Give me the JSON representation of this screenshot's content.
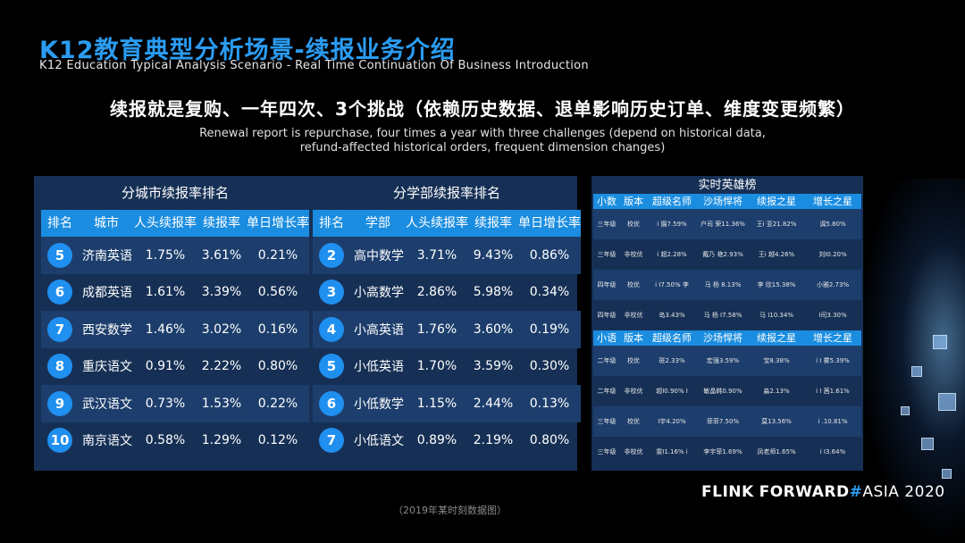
{
  "header": {
    "title": "K12教育典型分析场景-续报业务介绍",
    "subtitle": "K12 Education Typical Analysis Scenario - Real Time Continuation Of Business Introduction"
  },
  "headline": {
    "zh": "续报就是复购、一年四次、3个挑战（依赖历史数据、退单影响历史订单、维度变更频繁）",
    "en_line1": "Renewal report is repurchase, four times a year with three challenges (depend on historical data,",
    "en_line2": "refund-affected historical orders, frequent dimension changes)"
  },
  "city_ranking": {
    "title": "分城市续报率排名",
    "columns": [
      "排名",
      "城市",
      "人头续报率",
      "续报率",
      "单日增长率"
    ],
    "rows": [
      {
        "rank": "5",
        "name": "济南英语",
        "a": "1.75%",
        "b": "3.61%",
        "c": "0.21%"
      },
      {
        "rank": "6",
        "name": "成都英语",
        "a": "1.61%",
        "b": "3.39%",
        "c": "0.56%"
      },
      {
        "rank": "7",
        "name": "西安数学",
        "a": "1.46%",
        "b": "3.02%",
        "c": "0.16%"
      },
      {
        "rank": "8",
        "name": "重庆语文",
        "a": "0.91%",
        "b": "2.22%",
        "c": "0.80%"
      },
      {
        "rank": "9",
        "name": "武汉语文",
        "a": "0.73%",
        "b": "1.53%",
        "c": "0.22%"
      },
      {
        "rank": "10",
        "name": "南京语文",
        "a": "0.58%",
        "b": "1.29%",
        "c": "0.12%"
      }
    ]
  },
  "dept_ranking": {
    "title": "分学部续报率排名",
    "columns": [
      "排名",
      "学部",
      "人头续报率",
      "续报率",
      "单日增长率"
    ],
    "rows": [
      {
        "rank": "2",
        "name": "高中数学",
        "a": "3.71%",
        "b": "9.43%",
        "c": "0.86%"
      },
      {
        "rank": "3",
        "name": "小高数学",
        "a": "2.86%",
        "b": "5.98%",
        "c": "0.34%"
      },
      {
        "rank": "4",
        "name": "小高英语",
        "a": "1.76%",
        "b": "3.60%",
        "c": "0.19%"
      },
      {
        "rank": "5",
        "name": "小低英语",
        "a": "1.70%",
        "b": "3.59%",
        "c": "0.30%"
      },
      {
        "rank": "6",
        "name": "小低数学",
        "a": "1.15%",
        "b": "2.44%",
        "c": "0.13%"
      },
      {
        "rank": "7",
        "name": "小低语文",
        "a": "0.89%",
        "b": "2.19%",
        "c": "0.80%"
      }
    ]
  },
  "hero_board": {
    "title": "实时英雄榜",
    "section1": {
      "columns": [
        "小数",
        "版本",
        "超级名师",
        "沙场悍将",
        "续报之星",
        "增长之星"
      ],
      "rows": [
        [
          "三年级",
          "校优",
          "ⅰ  摄7.59%",
          "户司  荣11.36%",
          "王ⅰ  亚21.82%",
          "调5.80%"
        ],
        [
          "三年级",
          "非校优",
          "ⅰ  超2.28%",
          "戴乃  艳2.93%",
          "王ⅰ  越4.26%",
          "刘Ⅰ0.20%"
        ],
        [
          "四年级",
          "校优",
          "ⅰ  Ⅰ7.50% 李",
          "马 杨  8.13%",
          "李 欣15.38%",
          "小雅2.73%"
        ],
        [
          "四年级",
          "非校优",
          "岛3.43%",
          "马 杨  Ⅰ7.58%",
          "马  Ⅰ10.34%",
          "Ⅰ司3.30%"
        ]
      ]
    },
    "section2": {
      "columns": [
        "小语",
        "版本",
        "超级名师",
        "沙场悍将",
        "续报之星",
        "增长之星"
      ],
      "rows": [
        [
          "二年级",
          "校优",
          "斑2.33%",
          "宏强3.59%",
          "宝8.38%",
          "ⅰ  Ⅰ  雾5.39%"
        ],
        [
          "二年级",
          "非校优",
          "超Ⅰ0.90% Ⅰ",
          "敏晶韩0.90%",
          "淼2.13%",
          "ⅰ  Ⅰ  茜1.61%"
        ],
        [
          "三年级",
          "校优",
          "Ⅰ宇4.20%",
          "菲菲7.50%",
          "莫13.56%",
          "ⅰ  .10.81%"
        ],
        [
          "三年级",
          "非校优",
          "雯Ⅰ1.16%  ⅰ",
          "李宇菲1.69%",
          "凤老师1.65%",
          "ⅰ  Ⅰ3.64%"
        ]
      ]
    }
  },
  "footnote": "（2019年某时刻数据图）",
  "brand": {
    "flink": "FLINK",
    "forward": "FORWARD",
    "hash": "#",
    "asia": "ASIA 2020"
  }
}
